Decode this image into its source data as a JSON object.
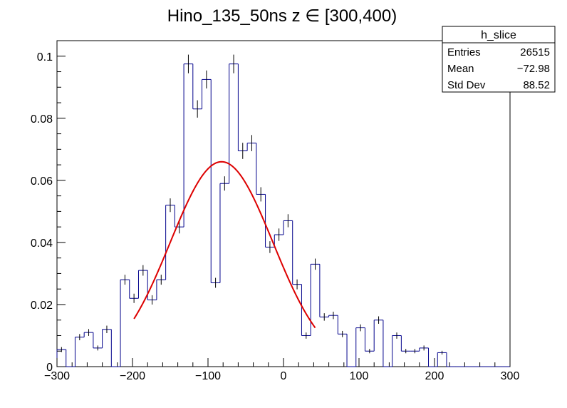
{
  "chart_data": {
    "type": "bar",
    "title": "Hino_135_50ns z  ∈ [300,400)",
    "xlabel": "",
    "ylabel": "",
    "xlim": [
      -300,
      300
    ],
    "ylim": [
      0,
      0.105
    ],
    "grid": false,
    "x_ticks": [
      "−300",
      "−200",
      "−100",
      "0",
      "100",
      "200",
      "300"
    ],
    "x_tick_values": [
      -300,
      -200,
      -100,
      0,
      100,
      200,
      300
    ],
    "y_ticks": [
      "0",
      "0.02",
      "0.04",
      "0.06",
      "0.08",
      "0.1"
    ],
    "y_tick_values": [
      0,
      0.02,
      0.04,
      0.06,
      0.08,
      0.1
    ],
    "bin_width": 12,
    "bin_start": -300,
    "histogram_color": "#00008b",
    "fit_color": "#dd0000",
    "values": [
      0.0055,
      0.0,
      0.0095,
      0.011,
      0.006,
      0.012,
      0.0,
      0.028,
      0.022,
      0.031,
      0.0215,
      0.028,
      0.052,
      0.045,
      0.0975,
      0.083,
      0.0925,
      0.027,
      0.059,
      0.0975,
      0.0695,
      0.072,
      0.0555,
      0.0385,
      0.0425,
      0.047,
      0.0265,
      0.01,
      0.033,
      0.016,
      0.0165,
      0.0105,
      0.0,
      0.0125,
      0.005,
      0.015,
      0.0,
      0.01,
      0.005,
      0.005,
      0.006,
      0.0,
      0.0045,
      0.0,
      0.0,
      0.0,
      0.0,
      0.0,
      0.0,
      0.0
    ],
    "errors": [
      0.0008,
      0,
      0.001,
      0.0011,
      0.0008,
      0.0012,
      0,
      0.0016,
      0.0015,
      0.0017,
      0.0015,
      0.0016,
      0.0022,
      0.0021,
      0.003,
      0.0028,
      0.0029,
      0.0016,
      0.0023,
      0.003,
      0.0026,
      0.0026,
      0.0023,
      0.0019,
      0.002,
      0.0021,
      0.0016,
      0.001,
      0.0018,
      0.0012,
      0.0012,
      0.001,
      0,
      0.0011,
      0.0007,
      0.0012,
      0,
      0.001,
      0.0007,
      0.0007,
      0.0008,
      0,
      0.0006,
      0,
      0,
      0,
      0,
      0,
      0,
      0
    ],
    "fit": {
      "type": "gaussian",
      "amplitude": 0.066,
      "mean": -82,
      "sigma": 68,
      "range": [
        -198,
        42
      ]
    }
  },
  "stats_box": {
    "name": "h_slice",
    "rows": [
      {
        "label": "Entries",
        "value": "26515"
      },
      {
        "label": "Mean",
        "value": "−72.98"
      },
      {
        "label": "Std Dev",
        "value": "88.52"
      }
    ]
  }
}
